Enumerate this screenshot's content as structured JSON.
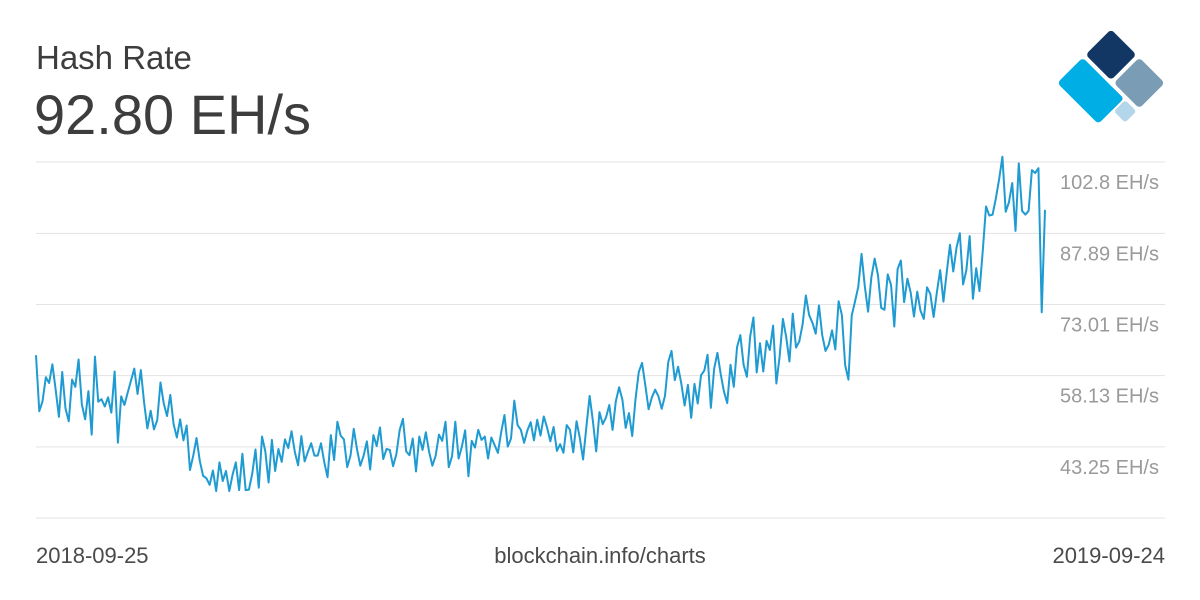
{
  "header": {
    "title": "Hash Rate",
    "current_value": "92.80 EH/s"
  },
  "footer": {
    "start_date": "2018-09-25",
    "source": "blockchain.info/charts",
    "end_date": "2019-09-24"
  },
  "logo": {
    "icon": "blockchain-logo-icon",
    "colors": [
      "#123765",
      "#7a9cb5",
      "#2c4fc2",
      "#b4d6ea",
      "#00aee6"
    ]
  },
  "colors": {
    "line": "#1f9bd2",
    "grid": "#e3e3e3",
    "tick_text": "#9a9a9a"
  },
  "chart_data": {
    "type": "line",
    "title": "Hash Rate",
    "xlabel": "",
    "ylabel": "",
    "x_start": "2018-09-25",
    "x_end": "2019-09-24",
    "ylim": [
      28.37,
      102.8
    ],
    "y_ticks": [
      102.8,
      87.89,
      73.01,
      58.13,
      43.25
    ],
    "y_tick_labels": [
      "102.8 EH/s",
      "87.89 EH/s",
      "73.01 EH/s",
      "58.13 EH/s",
      "43.25 EH/s"
    ],
    "grid": true,
    "series": [
      {
        "values": [
          62.4,
          50.7,
          52.8,
          57.8,
          56.6,
          60.5,
          55.2,
          49.5,
          58.9,
          51.3,
          48.6,
          57.3,
          55.8,
          61.5,
          52.1,
          49.0,
          54.9,
          45.8,
          62.1,
          52.7,
          53.2,
          51.7,
          53.6,
          50.4,
          59.0,
          44.1,
          53.8,
          52.0,
          54.6,
          57.1,
          59.6,
          54.3,
          59.3,
          52.5,
          47.1,
          50.8,
          46.9,
          48.8,
          56.7,
          52.3,
          49.7,
          54.1,
          48.0,
          45.2,
          49.0,
          44.6,
          47.7,
          38.4,
          41.4,
          45.1,
          40.3,
          37.2,
          36.7,
          35.3,
          38.3,
          34.0,
          40.0,
          36.1,
          38.2,
          34.0,
          37.4,
          40.0,
          34.2,
          41.8,
          34.2,
          34.3,
          37.6,
          42.7,
          34.7,
          45.4,
          42.3,
          35.8,
          44.7,
          38.2,
          42.8,
          40.1,
          44.8,
          43.0,
          46.5,
          42.2,
          39.4,
          45.5,
          40.2,
          42.2,
          44.0,
          41.4,
          41.4,
          44.0,
          40.0,
          36.9,
          45.7,
          40.5,
          48.5,
          45.6,
          44.8,
          39.0,
          41.4,
          47.0,
          42.7,
          39.3,
          41.4,
          44.4,
          38.5,
          45.7,
          43.4,
          47.3,
          40.7,
          42.8,
          42.6,
          39.2,
          41.7,
          46.7,
          49.1,
          42.3,
          41.5,
          45.0,
          38.1,
          45.4,
          42.6,
          46.3,
          42.2,
          39.3,
          41.4,
          45.8,
          44.5,
          48.5,
          39.0,
          41.3,
          48.5,
          40.8,
          43.3,
          46.7,
          37.1,
          44.5,
          43.1,
          46.8,
          44.7,
          45.4,
          40.8,
          45.2,
          43.6,
          42.0,
          46.3,
          49.9,
          43.3,
          45.0,
          52.9,
          47.8,
          46.8,
          44.1,
          46.7,
          48.4,
          44.6,
          48.9,
          45.6,
          49.6,
          47.3,
          44.4,
          47.4,
          42.4,
          43.8,
          42.0,
          47.8,
          46.8,
          42.1,
          48.6,
          45.1,
          40.6,
          47.4,
          53.9,
          48.6,
          42.3,
          50.5,
          48.0,
          49.4,
          52.0,
          46.8,
          52.8,
          55.7,
          53.1,
          47.2,
          50.3,
          45.5,
          53.2,
          58.9,
          60.8,
          56.1,
          51.1,
          53.6,
          55.2,
          53.8,
          51.2,
          53.9,
          61.0,
          63.3,
          57.2,
          60.0,
          56.4,
          51.9,
          56.2,
          49.3,
          56.4,
          52.3,
          58.2,
          59.2,
          62.5,
          51.4,
          59.5,
          62.9,
          58.5,
          54.8,
          52.4,
          60.4,
          55.8,
          64.1,
          66.6,
          60.4,
          57.9,
          66.3,
          70.3,
          58.8,
          64.9,
          59.0,
          65.4,
          63.5,
          68.6,
          56.5,
          62.2,
          70.0,
          66.2,
          61.1,
          71.1,
          64.0,
          65.3,
          68.8,
          74.9,
          70.8,
          69.2,
          66.9,
          72.8,
          66.6,
          63.3,
          64.6,
          67.6,
          63.6,
          73.7,
          70.8,
          60.3,
          57.3,
          70.7,
          73.6,
          76.7,
          83.6,
          76.8,
          71.5,
          78.7,
          82.6,
          79.2,
          72.3,
          71.9,
          79.3,
          77.1,
          68.4,
          80.4,
          82.2,
          73.5,
          78.4,
          75.5,
          70.5,
          75.7,
          71.7,
          70.0,
          76.6,
          75.2,
          70.4,
          75.6,
          80.2,
          73.6,
          79.7,
          85.5,
          79.9,
          84.9,
          87.9,
          77.2,
          80.2,
          87.3,
          74.2,
          80.6,
          75.8,
          84.2,
          93.5,
          91.6,
          91.8,
          95.2,
          99.2,
          103.9,
          92.4,
          94.4,
          98.4,
          88.4,
          102.5,
          92.6,
          91.8,
          92.6,
          101.1,
          100.5,
          101.5,
          71.4,
          92.8
        ]
      }
    ]
  }
}
